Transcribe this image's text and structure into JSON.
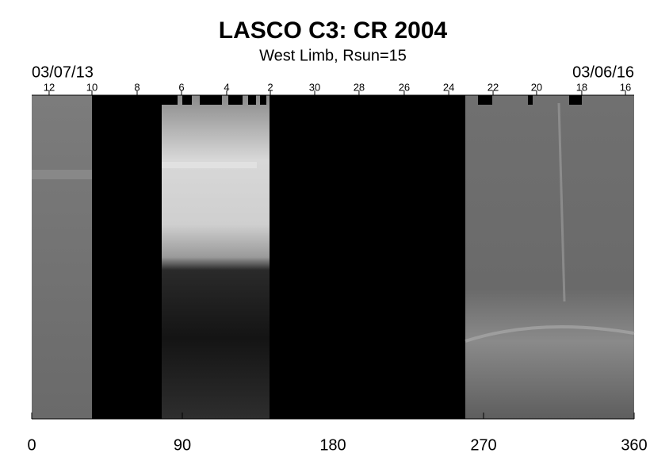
{
  "chart_data": {
    "type": "synoptic-map",
    "title": "LASCO C3: CR 2004",
    "subtitle": "West Limb, Rsun=15",
    "start_date": "03/07/13",
    "end_date": "03/06/16",
    "xlim": [
      0,
      360
    ],
    "xticks": [
      0,
      90,
      180,
      270,
      360
    ],
    "top_ticks": [
      {
        "value": 10.4,
        "label": "12"
      },
      {
        "value": 36.0,
        "label": "10"
      },
      {
        "value": 63.0,
        "label": "8"
      },
      {
        "value": 89.5,
        "label": "6"
      },
      {
        "value": 116.5,
        "label": "4"
      },
      {
        "value": 142.6,
        "label": "2"
      },
      {
        "value": 169.1,
        "label": "30"
      },
      {
        "value": 195.6,
        "label": "28"
      },
      {
        "value": 222.6,
        "label": "26"
      },
      {
        "value": 249.2,
        "label": "24"
      },
      {
        "value": 275.7,
        "label": "22"
      },
      {
        "value": 301.7,
        "label": "20"
      },
      {
        "value": 328.7,
        "label": "18"
      },
      {
        "value": 354.8,
        "label": "16"
      }
    ]
  }
}
